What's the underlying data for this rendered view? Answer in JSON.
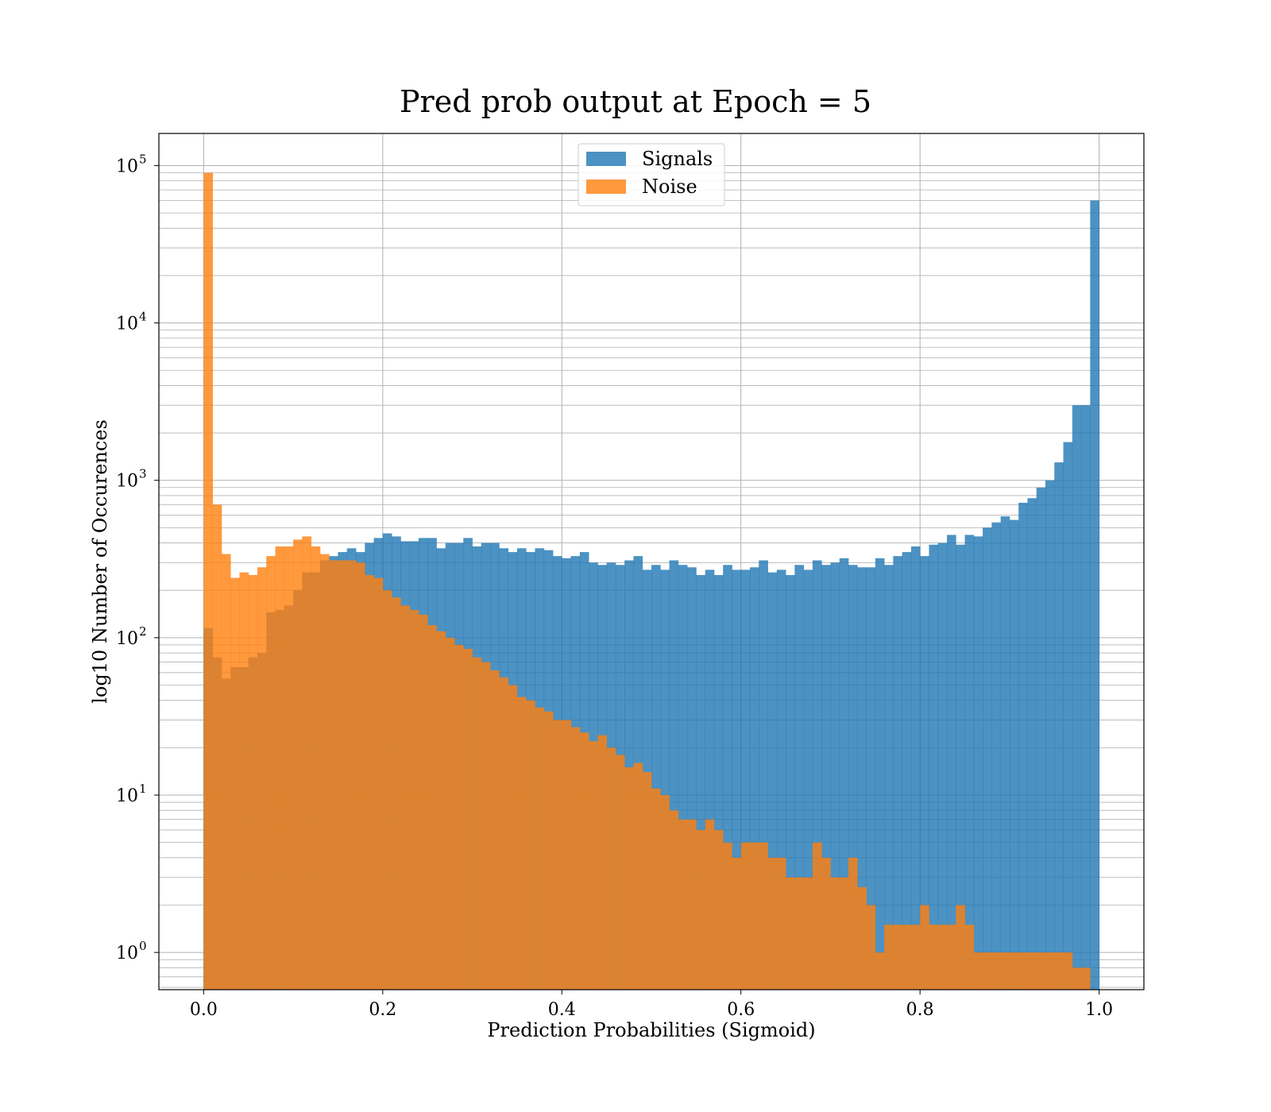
{
  "chart_data": {
    "type": "bar",
    "title": "Pred prob output at Epoch = 5",
    "xlabel": "Prediction Probabilities (Sigmoid)",
    "ylabel": "log10 Number of Occurences",
    "xlim": [
      -0.05,
      1.05
    ],
    "ylim": [
      0.58,
      160000
    ],
    "yscale": "log",
    "grid": true,
    "legend_position": "top-center",
    "bin_range": [
      0.0,
      1.0
    ],
    "bins": 100,
    "xticks": [
      {
        "value": 0.0,
        "label": "0.0"
      },
      {
        "value": 0.2,
        "label": "0.2"
      },
      {
        "value": 0.4,
        "label": "0.4"
      },
      {
        "value": 0.6,
        "label": "0.6"
      },
      {
        "value": 0.8,
        "label": "0.8"
      },
      {
        "value": 1.0,
        "label": "1.0"
      }
    ],
    "yticks": [
      {
        "value": 1,
        "base": "10",
        "exp": "0"
      },
      {
        "value": 10,
        "base": "10",
        "exp": "1"
      },
      {
        "value": 100,
        "base": "10",
        "exp": "2"
      },
      {
        "value": 1000,
        "base": "10",
        "exp": "3"
      },
      {
        "value": 10000,
        "base": "10",
        "exp": "4"
      },
      {
        "value": 100000,
        "base": "10",
        "exp": "5"
      }
    ],
    "series": [
      {
        "name": "Signals",
        "color": "#1f77b4",
        "values": [
          115,
          75,
          55,
          65,
          65,
          75,
          80,
          145,
          150,
          160,
          200,
          260,
          260,
          310,
          330,
          350,
          370,
          350,
          400,
          430,
          460,
          440,
          410,
          410,
          430,
          430,
          370,
          400,
          400,
          430,
          380,
          400,
          400,
          370,
          350,
          370,
          350,
          370,
          360,
          330,
          320,
          330,
          350,
          300,
          290,
          300,
          290,
          310,
          330,
          270,
          290,
          270,
          310,
          290,
          280,
          250,
          270,
          250,
          290,
          270,
          270,
          280,
          310,
          260,
          270,
          250,
          290,
          270,
          310,
          290,
          300,
          320,
          290,
          280,
          280,
          320,
          290,
          330,
          350,
          380,
          330,
          390,
          400,
          450,
          390,
          450,
          440,
          500,
          540,
          590,
          560,
          720,
          770,
          900,
          1000,
          1300,
          1750,
          3000,
          3000,
          60000
        ]
      },
      {
        "name": "Noise",
        "color": "#ff7f0e",
        "values": [
          90000,
          700,
          340,
          240,
          260,
          250,
          280,
          330,
          380,
          380,
          420,
          440,
          380,
          340,
          310,
          310,
          310,
          300,
          250,
          240,
          200,
          180,
          160,
          150,
          140,
          120,
          110,
          100,
          90,
          85,
          75,
          70,
          62,
          56,
          50,
          42,
          40,
          36,
          34,
          30,
          30,
          27,
          25,
          22,
          24,
          20,
          18,
          15,
          16,
          14,
          11,
          10,
          8,
          7,
          7,
          6,
          7,
          6,
          5,
          4,
          5,
          5,
          5,
          4,
          4,
          3,
          3,
          3,
          5,
          4,
          3,
          3,
          4,
          2.6,
          2,
          1,
          1.5,
          1.5,
          1.5,
          1.5,
          2,
          1.5,
          1.5,
          1.5,
          2,
          1.5,
          1,
          1,
          1,
          1,
          1,
          1,
          1,
          1,
          1,
          1,
          1,
          0.8,
          0.8,
          0
        ]
      }
    ]
  }
}
